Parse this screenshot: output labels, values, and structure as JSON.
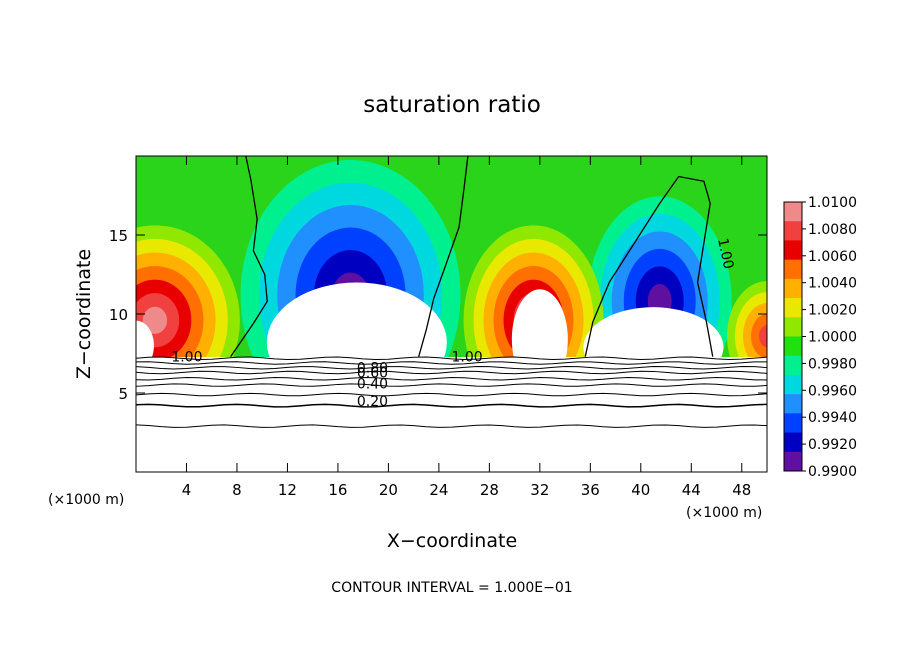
{
  "chart_data": {
    "type": "heatmap",
    "title": "saturation ratio",
    "xlabel": "X−coordinate",
    "ylabel": "Z−coordinate",
    "x_unit_left": "(×1000 m)",
    "x_unit_right": "(×1000 m)",
    "xlim": [
      0,
      50
    ],
    "ylim": [
      0,
      20
    ],
    "x_ticks": [
      4,
      8,
      12,
      16,
      20,
      24,
      28,
      32,
      36,
      40,
      44,
      48
    ],
    "y_ticks": [
      5,
      10,
      15
    ],
    "footer": "CONTOUR INTERVAL = 1.000E−01",
    "colorbar": {
      "ticks": [
        "1.0100",
        "1.0080",
        "1.0060",
        "1.0040",
        "1.0020",
        "1.0000",
        "0.9980",
        "0.9960",
        "0.9940",
        "0.9920",
        "0.9900"
      ],
      "colors": [
        "#f08a8a",
        "#f04040",
        "#e80000",
        "#ff7000",
        "#ffb000",
        "#e8e800",
        "#90e800",
        "#20e010",
        "#00f090",
        "#00d8e0",
        "#2090ff",
        "#0040ff",
        "#0000c0",
        "#6010a0"
      ]
    },
    "contour_labels": [
      "1.00",
      "1.00",
      "1.00",
      "0.80",
      "0.60",
      "0.40",
      "0.20"
    ]
  }
}
